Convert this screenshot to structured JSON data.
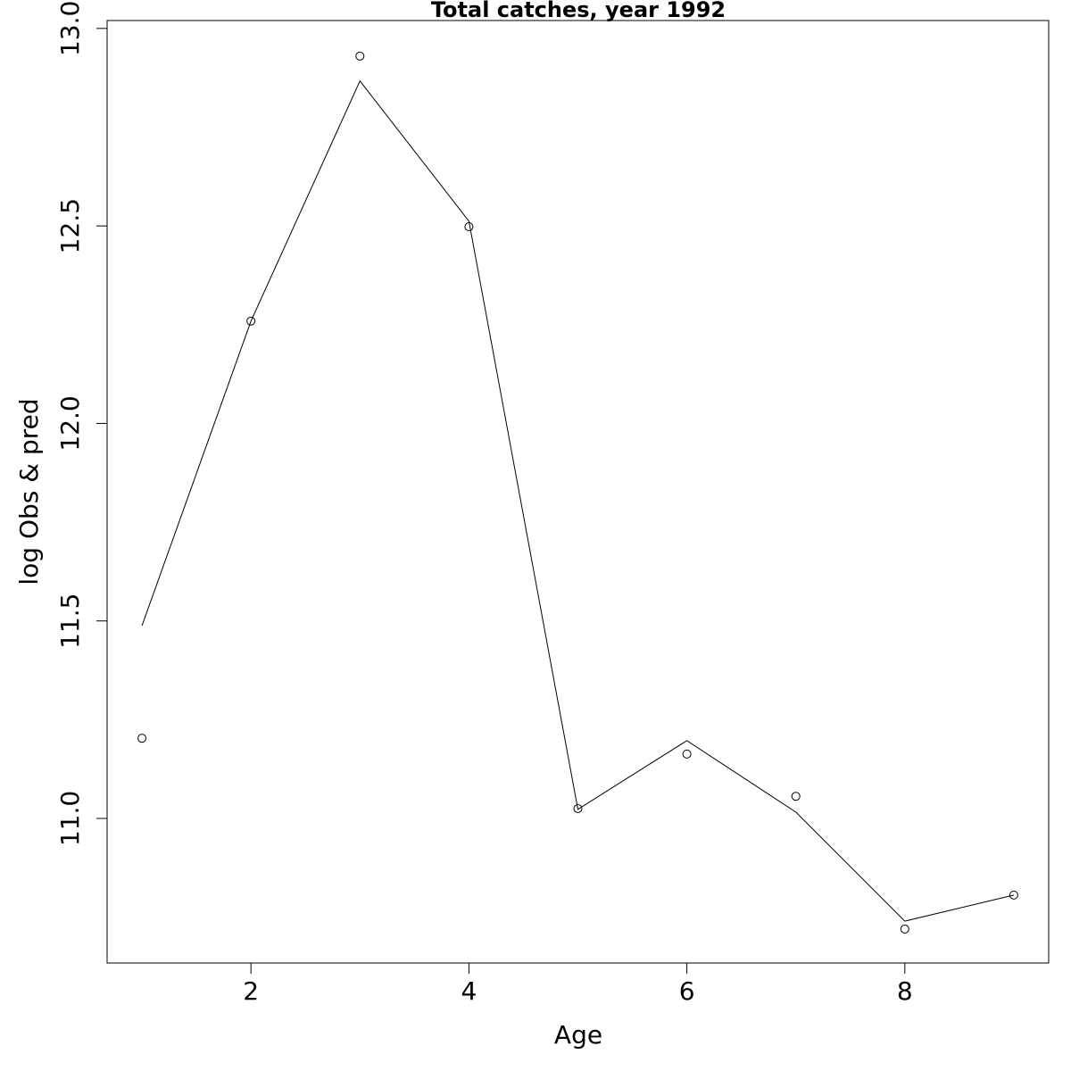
{
  "chart_data": {
    "type": "line",
    "title": "Total catches, year 1992",
    "x_label": "Age",
    "y_label": "log Obs & pred",
    "x": [
      1,
      2,
      3,
      4,
      5,
      6,
      7,
      8,
      9
    ],
    "series": [
      {
        "mode": "points",
        "color": "#000000",
        "values": [
          11.203,
          12.259,
          12.93,
          12.498,
          11.025,
          11.163,
          11.056,
          10.72,
          10.806
        ]
      },
      {
        "mode": "line",
        "color": "#000000",
        "values": [
          11.488,
          12.259,
          12.867,
          12.512,
          11.023,
          11.197,
          11.016,
          10.74,
          10.806
        ]
      }
    ],
    "xlim": [
      0.68,
      9.32
    ],
    "ylim": [
      10.634,
      13.02
    ],
    "xticks": [
      2,
      4,
      6,
      8
    ],
    "yticks": [
      {
        "value": 11,
        "label": "11.0"
      },
      11.5,
      {
        "value": 12,
        "label": "12.0"
      },
      12.5,
      {
        "value": 13,
        "label": "13.0"
      }
    ],
    "grid": false
  }
}
